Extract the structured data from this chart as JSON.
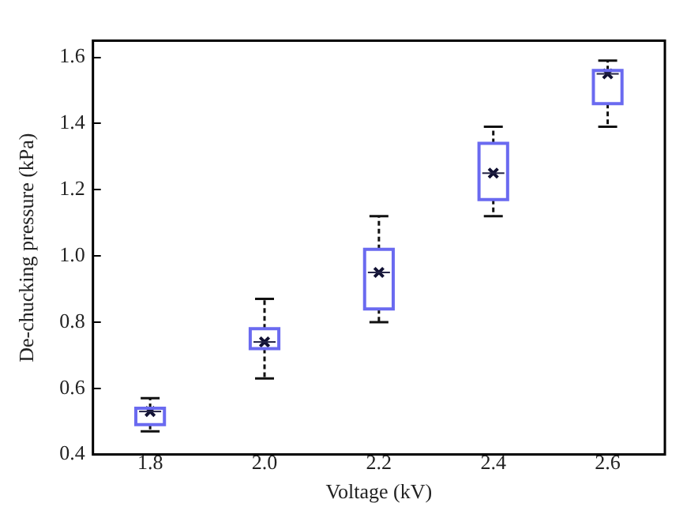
{
  "chart_data": {
    "type": "box",
    "xlabel": "Voltage (kV)",
    "ylabel": "De-chucking pressure (kPa)",
    "categories": [
      "1.8",
      "2.0",
      "2.2",
      "2.4",
      "2.6"
    ],
    "color": "#6a6af0",
    "boxes": [
      {
        "low": 0.47,
        "q1": 0.49,
        "median": 0.53,
        "q3": 0.54,
        "high": 0.57,
        "mean": 0.53
      },
      {
        "low": 0.63,
        "q1": 0.72,
        "median": 0.74,
        "q3": 0.78,
        "high": 0.87,
        "mean": 0.74
      },
      {
        "low": 0.8,
        "q1": 0.84,
        "median": 0.95,
        "q3": 1.02,
        "high": 1.12,
        "mean": 0.95
      },
      {
        "low": 1.12,
        "q1": 1.17,
        "median": 1.25,
        "q3": 1.34,
        "high": 1.39,
        "mean": 1.25
      },
      {
        "low": 1.39,
        "q1": 1.46,
        "median": 1.55,
        "q3": 1.56,
        "high": 1.59,
        "mean": 1.55
      }
    ],
    "ylim": [
      0.4,
      1.65
    ],
    "yticks": [
      0.4,
      0.6,
      0.8,
      {
        "value": 1,
        "label": "1.0"
      },
      1.2,
      1.4,
      1.6
    ],
    "grid": false,
    "legend": false
  }
}
